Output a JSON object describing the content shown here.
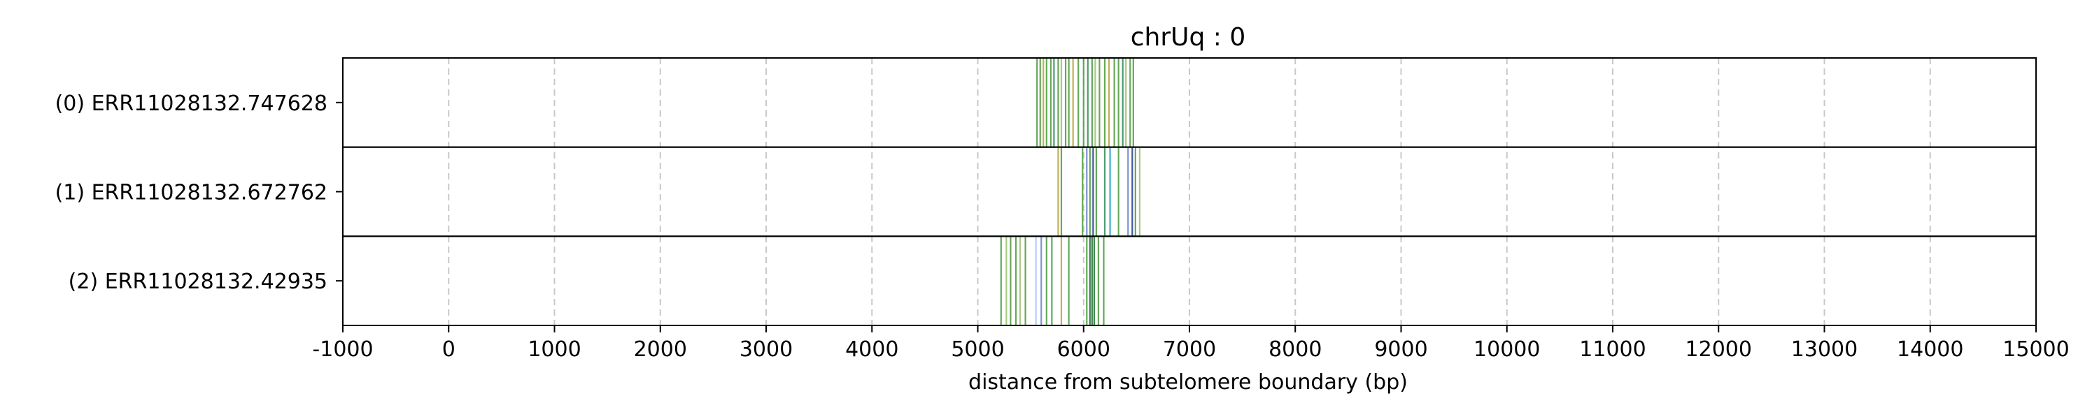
{
  "chart_data": {
    "type": "line",
    "title": "chrUq : 0",
    "xlabel": "distance from subtelomere boundary (bp)",
    "xlim": [
      -1000,
      15000
    ],
    "xticks": [
      -1000,
      0,
      1000,
      2000,
      3000,
      4000,
      5000,
      6000,
      7000,
      8000,
      9000,
      10000,
      11000,
      12000,
      13000,
      14000,
      15000
    ],
    "x_grid": "dashed vertical",
    "rows": [
      {
        "label": "(0) ERR11028132.747628",
        "lines": [
          {
            "x": 5560,
            "color": "#4a9a3c"
          },
          {
            "x": 5590,
            "color": "#4a9a3c"
          },
          {
            "x": 5620,
            "color": "#b5a23a"
          },
          {
            "x": 5650,
            "color": "#4a9a3c"
          },
          {
            "x": 5690,
            "color": "#4a9a3c"
          },
          {
            "x": 5720,
            "color": "#2e8b57"
          },
          {
            "x": 5760,
            "color": "#4a9a3c"
          },
          {
            "x": 5790,
            "color": "#9bbf6a"
          },
          {
            "x": 5830,
            "color": "#4a9a3c"
          },
          {
            "x": 5860,
            "color": "#4a9a3c"
          },
          {
            "x": 5900,
            "color": "#b5a23a"
          },
          {
            "x": 5950,
            "color": "#4a9a3c"
          },
          {
            "x": 6000,
            "color": "#4a9a3c"
          },
          {
            "x": 6040,
            "color": "#2e8b57"
          },
          {
            "x": 6080,
            "color": "#4a9a3c"
          },
          {
            "x": 6110,
            "color": "#9bbf6a"
          },
          {
            "x": 6150,
            "color": "#4a9a3c"
          },
          {
            "x": 6200,
            "color": "#4a9a3c"
          },
          {
            "x": 6240,
            "color": "#b5a23a"
          },
          {
            "x": 6290,
            "color": "#4a9a3c"
          },
          {
            "x": 6330,
            "color": "#4a9a3c"
          },
          {
            "x": 6370,
            "color": "#2e8b57"
          },
          {
            "x": 6400,
            "color": "#9bbf6a"
          },
          {
            "x": 6440,
            "color": "#4a9a3c"
          },
          {
            "x": 6470,
            "color": "#4a9a3c"
          }
        ]
      },
      {
        "label": "(1) ERR11028132.672762",
        "lines": [
          {
            "x": 5760,
            "color": "#b5a23a"
          },
          {
            "x": 5790,
            "color": "#4a9a3c"
          },
          {
            "x": 5990,
            "color": "#4a9a3c"
          },
          {
            "x": 6030,
            "color": "#6a7fc4"
          },
          {
            "x": 6060,
            "color": "#4a9a3c"
          },
          {
            "x": 6090,
            "color": "#1f3a93"
          },
          {
            "x": 6120,
            "color": "#4a9a3c"
          },
          {
            "x": 6200,
            "color": "#2e8b57"
          },
          {
            "x": 6250,
            "color": "#17a2b8"
          },
          {
            "x": 6330,
            "color": "#4a9a3c"
          },
          {
            "x": 6420,
            "color": "#6a7fc4"
          },
          {
            "x": 6460,
            "color": "#1f3a93"
          },
          {
            "x": 6490,
            "color": "#4a9a3c"
          },
          {
            "x": 6530,
            "color": "#9bbf6a"
          }
        ]
      },
      {
        "label": "(2) ERR11028132.42935",
        "lines": [
          {
            "x": 5220,
            "color": "#4a9a3c"
          },
          {
            "x": 5270,
            "color": "#9bbf6a"
          },
          {
            "x": 5310,
            "color": "#4a9a3c"
          },
          {
            "x": 5360,
            "color": "#4a9a3c"
          },
          {
            "x": 5400,
            "color": "#9bbf6a"
          },
          {
            "x": 5450,
            "color": "#4a9a3c"
          },
          {
            "x": 5550,
            "color": "#a9c4f5"
          },
          {
            "x": 5600,
            "color": "#6a7fc4"
          },
          {
            "x": 5650,
            "color": "#4a9a3c"
          },
          {
            "x": 5700,
            "color": "#4a9a3c"
          },
          {
            "x": 5790,
            "color": "#b5a23a"
          },
          {
            "x": 5860,
            "color": "#4a9a3c"
          },
          {
            "x": 6030,
            "color": "#4a9a3c"
          },
          {
            "x": 6060,
            "color": "#1f6b2e"
          },
          {
            "x": 6080,
            "color": "#1f6b2e"
          },
          {
            "x": 6100,
            "color": "#1f6b2e"
          },
          {
            "x": 6140,
            "color": "#4a9a3c"
          },
          {
            "x": 6190,
            "color": "#4a9a3c"
          }
        ]
      }
    ]
  }
}
